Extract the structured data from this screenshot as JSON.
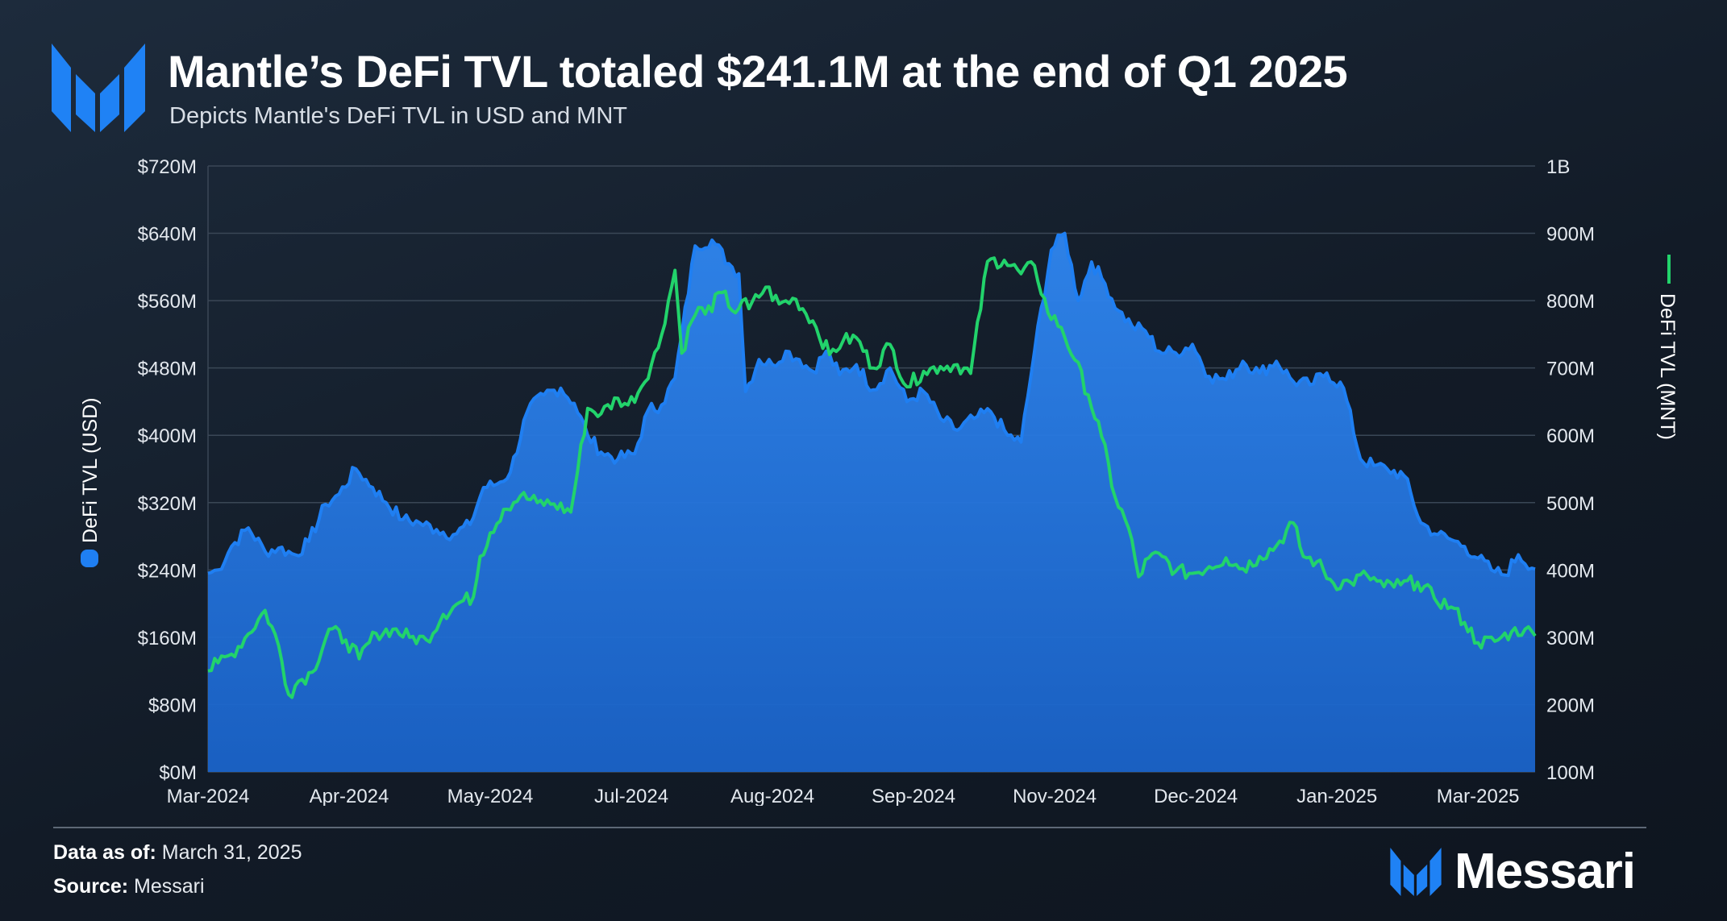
{
  "header": {
    "title": "Mantle’s DeFi TVL totaled $241.1M at the end of Q1 2025",
    "subtitle": "Depicts Mantle's DeFi TVL in USD and MNT"
  },
  "footer": {
    "data_as_of_label": "Data as of:",
    "data_as_of_value": "March 31, 2025",
    "source_label": "Source:",
    "source_value": "Messari",
    "brand": "Messari"
  },
  "icons": {
    "logo": "messari-logo-icon",
    "brand_logo": "messari-logo-icon"
  },
  "colors": {
    "usd": "#1f7ff2",
    "usd_fill": "#1c6ed3",
    "mnt": "#22d36b",
    "grid": "#3a4756",
    "axis_text": "#e3e8ee"
  },
  "chart_data": {
    "type": "line",
    "x_tick_labels": [
      "Mar-2024",
      "Apr-2024",
      "May-2024",
      "Jul-2024",
      "Aug-2024",
      "Sep-2024",
      "Nov-2024",
      "Dec-2024",
      "Jan-2025",
      "Mar-2025"
    ],
    "x_tick_dates": [
      "2024-03-01",
      "2024-04-12",
      "2024-05-24",
      "2024-07-05",
      "2024-08-16",
      "2024-09-27",
      "2024-11-08",
      "2024-12-20",
      "2025-01-31",
      "2025-03-14"
    ],
    "x_range": [
      "2024-03-01",
      "2025-03-31"
    ],
    "y_left": {
      "label": "DeFi TVL (USD)",
      "min": 0,
      "max": 720000000,
      "ticks": [
        "$0M",
        "$80M",
        "$160M",
        "$240M",
        "$320M",
        "$400M",
        "$480M",
        "$560M",
        "$640M",
        "$720M"
      ]
    },
    "y_right": {
      "label": "DeFi TVL (MNT)",
      "min": 100000000,
      "max": 1000000000,
      "ticks": [
        "100M",
        "200M",
        "300M",
        "400M",
        "500M",
        "600M",
        "700M",
        "800M",
        "900M",
        "1B"
      ]
    },
    "grid": true,
    "series": [
      {
        "name": "DeFi TVL (USD)",
        "axis": "left",
        "style": "area",
        "x": [
          "2024-03-01",
          "2024-03-04",
          "2024-03-08",
          "2024-03-13",
          "2024-03-18",
          "2024-03-22",
          "2024-03-27",
          "2024-03-31",
          "2024-04-05",
          "2024-04-09",
          "2024-04-14",
          "2024-04-19",
          "2024-04-23",
          "2024-04-28",
          "2024-05-03",
          "2024-05-08",
          "2024-05-13",
          "2024-05-18",
          "2024-05-22",
          "2024-05-26",
          "2024-05-30",
          "2024-06-04",
          "2024-06-09",
          "2024-06-14",
          "2024-06-18",
          "2024-06-22",
          "2024-06-26",
          "2024-07-01",
          "2024-07-06",
          "2024-07-10",
          "2024-07-14",
          "2024-07-18",
          "2024-07-20",
          "2024-07-24",
          "2024-07-29",
          "2024-08-03",
          "2024-08-06",
          "2024-08-08",
          "2024-08-12",
          "2024-08-16",
          "2024-08-20",
          "2024-08-24",
          "2024-08-28",
          "2024-09-01",
          "2024-09-05",
          "2024-09-10",
          "2024-09-15",
          "2024-09-20",
          "2024-09-25",
          "2024-09-30",
          "2024-10-05",
          "2024-10-10",
          "2024-10-15",
          "2024-10-20",
          "2024-10-25",
          "2024-10-29",
          "2024-11-02",
          "2024-11-07",
          "2024-11-11",
          "2024-11-15",
          "2024-11-19",
          "2024-11-23",
          "2024-11-27",
          "2024-12-01",
          "2024-12-05",
          "2024-12-09",
          "2024-12-14",
          "2024-12-19",
          "2024-12-24",
          "2024-12-29",
          "2025-01-03",
          "2025-01-08",
          "2025-01-13",
          "2025-01-18",
          "2025-01-23",
          "2025-01-28",
          "2025-02-02",
          "2025-02-07",
          "2025-02-11",
          "2025-02-15",
          "2025-02-20",
          "2025-02-25",
          "2025-03-02",
          "2025-03-06",
          "2025-03-10",
          "2025-03-14",
          "2025-03-18",
          "2025-03-22",
          "2025-03-26",
          "2025-03-31"
        ],
        "values": [
          236,
          240,
          268,
          290,
          262,
          266,
          258,
          274,
          318,
          330,
          360,
          338,
          320,
          300,
          296,
          288,
          282,
          294,
          338,
          342,
          356,
          428,
          448,
          456,
          438,
          400,
          380,
          372,
          378,
          430,
          436,
          468,
          520,
          625,
          632,
          604,
          592,
          452,
          490,
          484,
          500,
          490,
          476,
          500,
          472,
          484,
          454,
          480,
          440,
          452,
          420,
          406,
          420,
          428,
          400,
          392,
          500,
          620,
          640,
          560,
          606,
          580,
          548,
          530,
          524,
          500,
          498,
          508,
          470,
          466,
          488,
          474,
          488,
          464,
          460,
          474,
          456,
          372,
          364,
          360,
          352,
          296,
          282,
          276,
          268,
          254,
          240,
          234,
          258,
          241.1
        ]
      },
      {
        "name": "DeFi TVL (MNT)",
        "axis": "right",
        "style": "line",
        "x": [
          "2024-03-01",
          "2024-03-04",
          "2024-03-08",
          "2024-03-13",
          "2024-03-18",
          "2024-03-22",
          "2024-03-25",
          "2024-03-28",
          "2024-04-01",
          "2024-04-06",
          "2024-04-11",
          "2024-04-15",
          "2024-04-20",
          "2024-04-25",
          "2024-04-30",
          "2024-05-05",
          "2024-05-10",
          "2024-05-15",
          "2024-05-19",
          "2024-05-21",
          "2024-05-24",
          "2024-05-28",
          "2024-06-02",
          "2024-06-07",
          "2024-06-12",
          "2024-06-17",
          "2024-06-22",
          "2024-06-26",
          "2024-07-01",
          "2024-07-04",
          "2024-07-08",
          "2024-07-13",
          "2024-07-18",
          "2024-07-20",
          "2024-07-23",
          "2024-07-25",
          "2024-07-27",
          "2024-08-01",
          "2024-08-05",
          "2024-08-07",
          "2024-08-09",
          "2024-08-14",
          "2024-08-18",
          "2024-08-23",
          "2024-08-28",
          "2024-09-02",
          "2024-09-06",
          "2024-09-10",
          "2024-09-15",
          "2024-09-20",
          "2024-09-25",
          "2024-09-30",
          "2024-10-05",
          "2024-10-10",
          "2024-10-14",
          "2024-10-19",
          "2024-10-24",
          "2024-10-29",
          "2024-11-02",
          "2024-11-06",
          "2024-11-10",
          "2024-11-14",
          "2024-11-18",
          "2024-11-22",
          "2024-11-26",
          "2024-11-30",
          "2024-12-03",
          "2024-12-06",
          "2024-12-10",
          "2024-12-14",
          "2024-12-19",
          "2024-12-24",
          "2024-12-29",
          "2025-01-03",
          "2025-01-08",
          "2025-01-13",
          "2025-01-18",
          "2025-01-21",
          "2025-01-25",
          "2025-01-30",
          "2025-02-04",
          "2025-02-09",
          "2025-02-14",
          "2025-02-19",
          "2025-02-24",
          "2025-03-01",
          "2025-03-06",
          "2025-03-10",
          "2025-03-14",
          "2025-03-19",
          "2025-03-24",
          "2025-03-28",
          "2025-03-31"
        ],
        "values": [
          250,
          262,
          275,
          305,
          340,
          288,
          215,
          235,
          248,
          312,
          296,
          268,
          306,
          312,
          300,
          296,
          334,
          352,
          360,
          420,
          455,
          490,
          510,
          500,
          498,
          486,
          640,
          632,
          655,
          645,
          672,
          730,
          845,
          722,
          770,
          790,
          780,
          812,
          782,
          800,
          788,
          820,
          795,
          802,
          770,
          720,
          740,
          745,
          700,
          735,
          672,
          695,
          702,
          705,
          692,
          858,
          860,
          840,
          852,
          782,
          760,
          712,
          660,
          598,
          508,
          462,
          390,
          418,
          420,
          398,
          395,
          405,
          418,
          402,
          420,
          436,
          470,
          420,
          412,
          380,
          382,
          392,
          375,
          378,
          382,
          358,
          345,
          322,
          292,
          294,
          308,
          312,
          302
        ]
      }
    ]
  }
}
